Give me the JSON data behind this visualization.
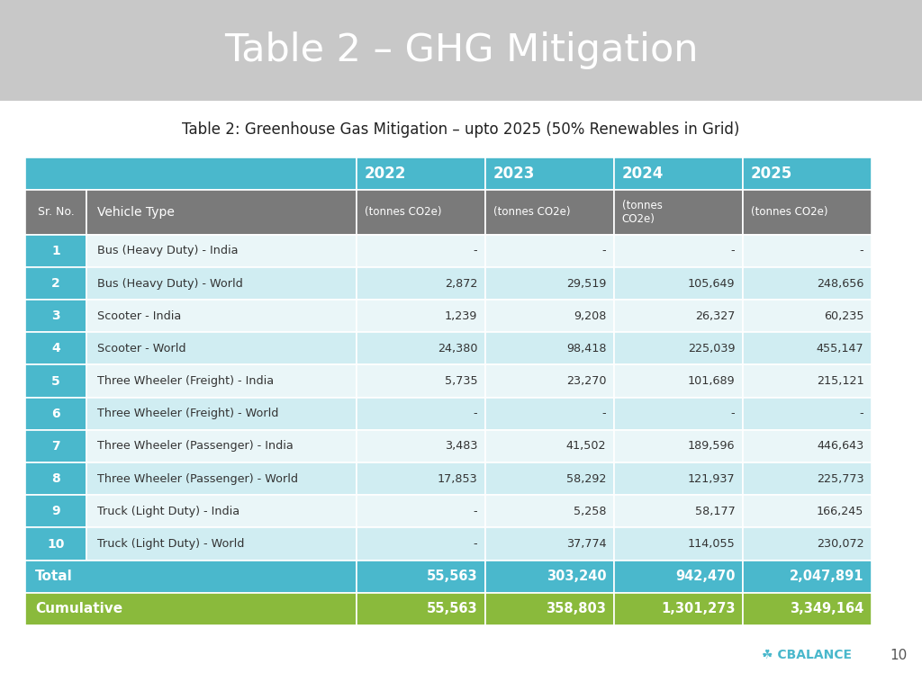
{
  "title": "Table 2 – GHG Mitigation",
  "subtitle": "Table 2: Greenhouse Gas Mitigation – upto 2025 (50% Renewables in Grid)",
  "title_bg": "#c8c8c8",
  "title_color": "#ffffff",
  "subtitle_color": "#222222",
  "header_row1_bg": "#4ab8cc",
  "header_row2_bg": "#7a7a7a",
  "header_text_color": "#ffffff",
  "total_row_bg": "#4ab8cc",
  "total_row_text_color": "#ffffff",
  "cumulative_row_bg": "#8aba3c",
  "cumulative_row_text_color": "#ffffff",
  "odd_row_bg": "#eaf6f8",
  "even_row_bg": "#d0edf2",
  "sr_col_bg": "#4ab8cc",
  "sr_col_text_color": "#ffffff",
  "vehicle_col_text_color": "#333333",
  "data_text_color": "#333333",
  "years": [
    "2022",
    "2023",
    "2024",
    "2025"
  ],
  "year_unit": "(tonnes CO2e)",
  "year_unit_2024": "(tonnes\nCO2e)",
  "sr_nos": [
    "1",
    "2",
    "3",
    "4",
    "5",
    "6",
    "7",
    "8",
    "9",
    "10"
  ],
  "vehicle_types": [
    "Bus (Heavy Duty) - India",
    "Bus (Heavy Duty) - World",
    "Scooter - India",
    "Scooter - World",
    "Three Wheeler (Freight) - India",
    "Three Wheeler (Freight) - World",
    "Three Wheeler (Passenger) - India",
    "Three Wheeler (Passenger) - World",
    "Truck (Light Duty) - India",
    "Truck (Light Duty) - World"
  ],
  "data": [
    [
      "-",
      "-",
      "-",
      "-"
    ],
    [
      "2,872",
      "29,519",
      "105,649",
      "248,656"
    ],
    [
      "1,239",
      "9,208",
      "26,327",
      "60,235"
    ],
    [
      "24,380",
      "98,418",
      "225,039",
      "455,147"
    ],
    [
      "5,735",
      "23,270",
      "101,689",
      "215,121"
    ],
    [
      "-",
      "-",
      "-",
      "-"
    ],
    [
      "3,483",
      "41,502",
      "189,596",
      "446,643"
    ],
    [
      "17,853",
      "58,292",
      "121,937",
      "225,773"
    ],
    [
      "-",
      "5,258",
      "58,177",
      "166,245"
    ],
    [
      "-",
      "37,774",
      "114,055",
      "230,072"
    ]
  ],
  "total": [
    "55,563",
    "303,240",
    "942,470",
    "2,047,891"
  ],
  "cumulative": [
    "55,563",
    "358,803",
    "1,301,273",
    "3,349,164"
  ],
  "page_number": "10",
  "fig_width": 10.24,
  "fig_height": 7.68,
  "dpi": 100
}
